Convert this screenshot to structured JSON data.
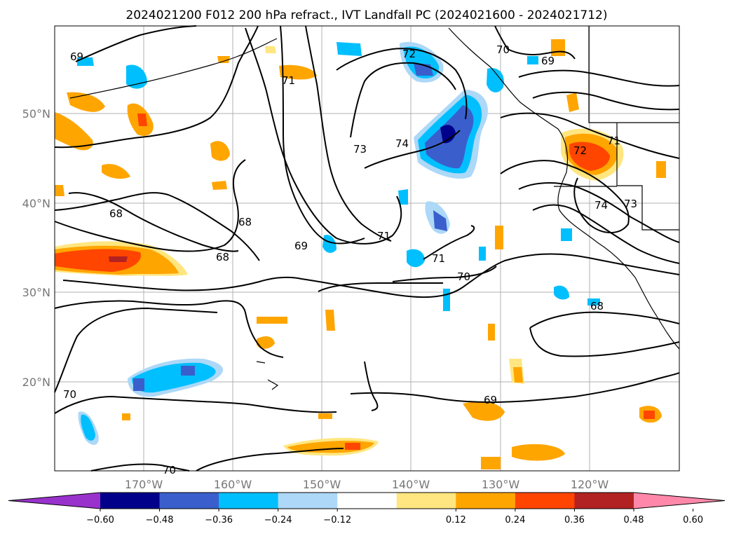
{
  "title": "2024021200 F012 200 hPa refract., IVT Landfall PC (2024021600 - 2024021712)",
  "map": {
    "lon_ticks": [
      "170°W",
      "160°W",
      "150°W",
      "140°W",
      "130°W",
      "120°W"
    ],
    "lat_ticks": [
      "50°N",
      "40°N",
      "30°N",
      "20°N"
    ],
    "grid": true,
    "contour_labels": [
      "69",
      "71",
      "72",
      "70",
      "69",
      "73",
      "74",
      "72",
      "71",
      "68",
      "68",
      "68",
      "69",
      "71",
      "71",
      "70",
      "73",
      "74",
      "68",
      "70",
      "69",
      "70"
    ]
  },
  "colorbar": {
    "ticks": [
      "−0.60",
      "−0.48",
      "−0.36",
      "−0.24",
      "−0.12",
      "0.12",
      "0.24",
      "0.36",
      "0.48",
      "0.60"
    ],
    "colors": [
      "#9932cc",
      "#00008b",
      "#3a5fcd",
      "#00bfff",
      "#add8f7",
      "#ffffff",
      "#ffe680",
      "#ffa500",
      "#ff4500",
      "#b22222",
      "#ff88aa"
    ],
    "extend": "both"
  }
}
